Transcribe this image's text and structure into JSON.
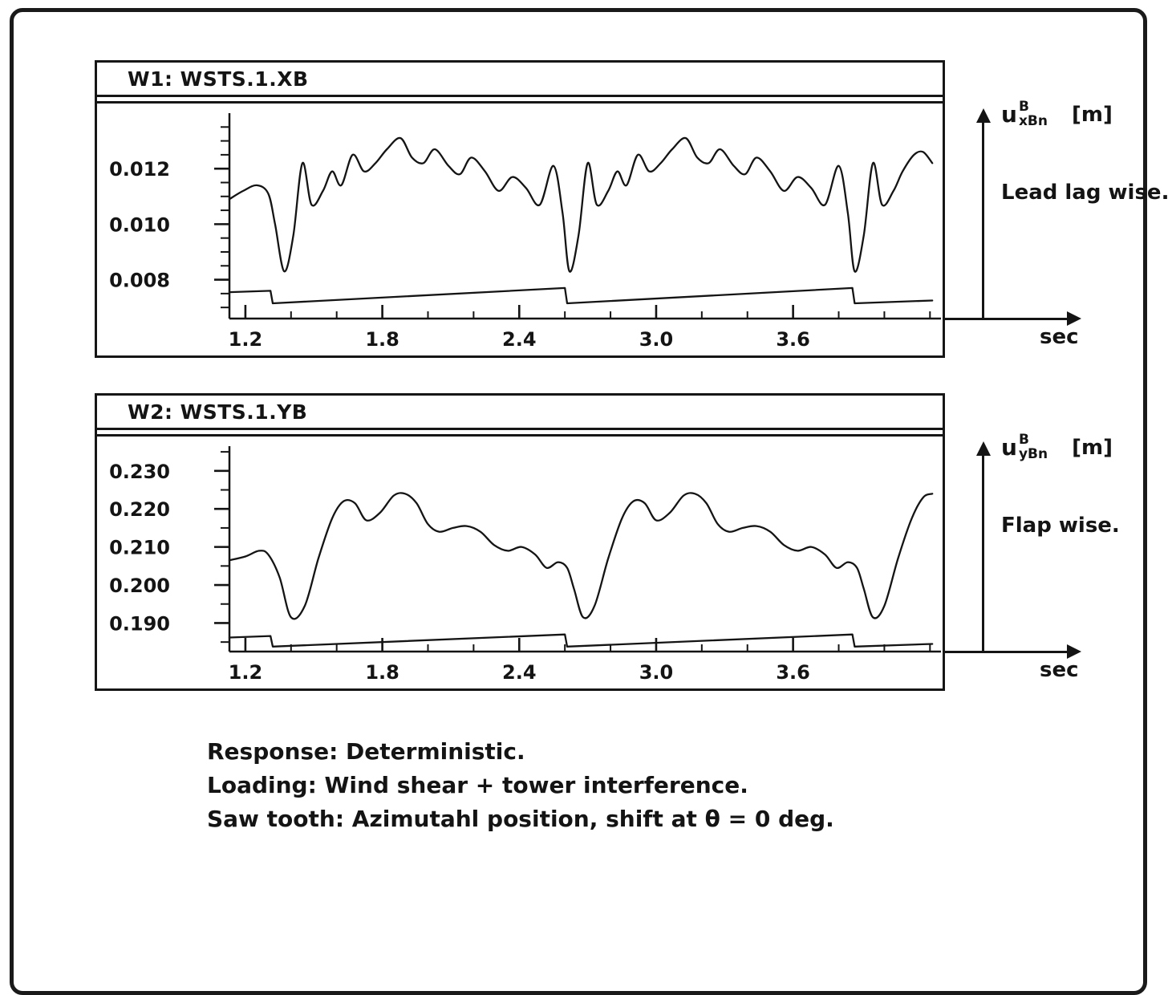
{
  "figure": {
    "background": "#ffffff",
    "line_color": "#141414",
    "border_color": "#1a1a1a"
  },
  "chart_data": [
    {
      "id": "W1",
      "type": "line",
      "title": "W1: WSTS.1.XB",
      "x_unit": "sec",
      "y_label": {
        "base": "u",
        "sup": "B",
        "sub": "xBn",
        "unit": "[m]"
      },
      "caption": "Lead lag wise.",
      "xlim": [
        1.13,
        4.22
      ],
      "ylim": [
        0.0066,
        0.014
      ],
      "x_ticks": {
        "minor_start": 1.2,
        "minor_step": 0.2,
        "minor_max": 4.2,
        "major_values": [
          1.2,
          1.8,
          2.4,
          3.0,
          3.6
        ],
        "labels": [
          "1.2",
          "1.8",
          "2.4",
          "3.0",
          "3.6"
        ]
      },
      "y_ticks": {
        "minor_start": 0.007,
        "minor_step": 0.0005,
        "minor_max": 0.0135,
        "major_values": [
          0.008,
          0.01,
          0.012
        ],
        "labels": [
          "0.008",
          "0.010",
          "0.012"
        ]
      },
      "series": [
        {
          "name": "lead-lag-response",
          "smooth": true,
          "points": [
            [
              1.13,
              0.0109
            ],
            [
              1.19,
              0.0112
            ],
            [
              1.25,
              0.0114
            ],
            [
              1.3,
              0.0111
            ],
            [
              1.33,
              0.01
            ],
            [
              1.37,
              0.0083
            ],
            [
              1.41,
              0.0096
            ],
            [
              1.45,
              0.0122
            ],
            [
              1.49,
              0.0107
            ],
            [
              1.54,
              0.0112
            ],
            [
              1.58,
              0.0119
            ],
            [
              1.62,
              0.0114
            ],
            [
              1.67,
              0.0125
            ],
            [
              1.72,
              0.0119
            ],
            [
              1.77,
              0.0122
            ],
            [
              1.82,
              0.0127
            ],
            [
              1.88,
              0.0131
            ],
            [
              1.93,
              0.0124
            ],
            [
              1.98,
              0.0122
            ],
            [
              2.03,
              0.0127
            ],
            [
              2.09,
              0.0121
            ],
            [
              2.14,
              0.0118
            ],
            [
              2.19,
              0.0124
            ],
            [
              2.25,
              0.0119
            ],
            [
              2.31,
              0.0112
            ],
            [
              2.37,
              0.0117
            ],
            [
              2.43,
              0.0113
            ],
            [
              2.49,
              0.0107
            ],
            [
              2.55,
              0.0121
            ],
            [
              2.59,
              0.0104
            ],
            [
              2.62,
              0.0083
            ],
            [
              2.66,
              0.0096
            ],
            [
              2.7,
              0.0122
            ],
            [
              2.74,
              0.0107
            ],
            [
              2.79,
              0.0112
            ],
            [
              2.83,
              0.0119
            ],
            [
              2.87,
              0.0114
            ],
            [
              2.92,
              0.0125
            ],
            [
              2.97,
              0.0119
            ],
            [
              3.02,
              0.0122
            ],
            [
              3.07,
              0.0127
            ],
            [
              3.13,
              0.0131
            ],
            [
              3.18,
              0.0124
            ],
            [
              3.23,
              0.0122
            ],
            [
              3.28,
              0.0127
            ],
            [
              3.34,
              0.0121
            ],
            [
              3.39,
              0.0118
            ],
            [
              3.44,
              0.0124
            ],
            [
              3.5,
              0.0119
            ],
            [
              3.56,
              0.0112
            ],
            [
              3.62,
              0.0117
            ],
            [
              3.68,
              0.0113
            ],
            [
              3.74,
              0.0107
            ],
            [
              3.8,
              0.0121
            ],
            [
              3.84,
              0.0104
            ],
            [
              3.87,
              0.0083
            ],
            [
              3.91,
              0.0096
            ],
            [
              3.95,
              0.0122
            ],
            [
              3.99,
              0.0107
            ],
            [
              4.04,
              0.0112
            ],
            [
              4.08,
              0.0119
            ],
            [
              4.13,
              0.0125
            ],
            [
              4.17,
              0.0126
            ],
            [
              4.21,
              0.0122
            ]
          ]
        },
        {
          "name": "azimuth-sawtooth",
          "smooth": false,
          "points": [
            [
              1.13,
              0.00755
            ],
            [
              1.31,
              0.0076
            ],
            [
              1.32,
              0.00715
            ],
            [
              2.6,
              0.0077
            ],
            [
              2.61,
              0.00715
            ],
            [
              3.86,
              0.0077
            ],
            [
              3.87,
              0.00715
            ],
            [
              4.21,
              0.00725
            ]
          ]
        }
      ]
    },
    {
      "id": "W2",
      "type": "line",
      "title": "W2: WSTS.1.YB",
      "x_unit": "sec",
      "y_label": {
        "base": "u",
        "sup": "B",
        "sub": "yBn",
        "unit": "[m]"
      },
      "caption": "Flap wise.",
      "xlim": [
        1.13,
        4.22
      ],
      "ylim": [
        0.1825,
        0.2365
      ],
      "x_ticks": {
        "minor_start": 1.2,
        "minor_step": 0.2,
        "minor_max": 4.2,
        "major_values": [
          1.2,
          1.8,
          2.4,
          3.0,
          3.6
        ],
        "labels": [
          "1.2",
          "1.8",
          "2.4",
          "3.0",
          "3.6"
        ]
      },
      "y_ticks": {
        "minor_start": 0.185,
        "minor_step": 0.005,
        "minor_max": 0.235,
        "major_values": [
          0.19,
          0.2,
          0.21,
          0.22,
          0.23
        ],
        "labels": [
          "0.190",
          "0.200",
          "0.210",
          "0.220",
          "0.230"
        ]
      },
      "series": [
        {
          "name": "flap-response",
          "smooth": true,
          "points": [
            [
              1.13,
              0.2065
            ],
            [
              1.2,
              0.2075
            ],
            [
              1.26,
              0.209
            ],
            [
              1.3,
              0.208
            ],
            [
              1.35,
              0.202
            ],
            [
              1.4,
              0.1915
            ],
            [
              1.46,
              0.1945
            ],
            [
              1.52,
              0.207
            ],
            [
              1.58,
              0.2175
            ],
            [
              1.63,
              0.222
            ],
            [
              1.68,
              0.2215
            ],
            [
              1.73,
              0.217
            ],
            [
              1.79,
              0.219
            ],
            [
              1.85,
              0.2235
            ],
            [
              1.9,
              0.224
            ],
            [
              1.95,
              0.2215
            ],
            [
              2.0,
              0.216
            ],
            [
              2.05,
              0.214
            ],
            [
              2.11,
              0.215
            ],
            [
              2.17,
              0.2155
            ],
            [
              2.23,
              0.214
            ],
            [
              2.29,
              0.2105
            ],
            [
              2.35,
              0.209
            ],
            [
              2.41,
              0.21
            ],
            [
              2.47,
              0.208
            ],
            [
              2.52,
              0.2045
            ],
            [
              2.57,
              0.206
            ],
            [
              2.61,
              0.2045
            ],
            [
              2.64,
              0.199
            ],
            [
              2.68,
              0.1915
            ],
            [
              2.73,
              0.1945
            ],
            [
              2.79,
              0.207
            ],
            [
              2.85,
              0.2175
            ],
            [
              2.9,
              0.222
            ],
            [
              2.95,
              0.2215
            ],
            [
              3.0,
              0.217
            ],
            [
              3.06,
              0.219
            ],
            [
              3.12,
              0.2235
            ],
            [
              3.17,
              0.224
            ],
            [
              3.22,
              0.2215
            ],
            [
              3.27,
              0.216
            ],
            [
              3.32,
              0.214
            ],
            [
              3.38,
              0.215
            ],
            [
              3.44,
              0.2155
            ],
            [
              3.5,
              0.214
            ],
            [
              3.56,
              0.2105
            ],
            [
              3.62,
              0.209
            ],
            [
              3.68,
              0.21
            ],
            [
              3.74,
              0.208
            ],
            [
              3.79,
              0.2045
            ],
            [
              3.84,
              0.206
            ],
            [
              3.88,
              0.2045
            ],
            [
              3.91,
              0.199
            ],
            [
              3.95,
              0.1915
            ],
            [
              4.0,
              0.1945
            ],
            [
              4.06,
              0.207
            ],
            [
              4.12,
              0.2175
            ],
            [
              4.17,
              0.223
            ],
            [
              4.21,
              0.224
            ]
          ]
        },
        {
          "name": "azimuth-sawtooth",
          "smooth": false,
          "points": [
            [
              1.13,
              0.1862
            ],
            [
              1.31,
              0.1866
            ],
            [
              1.32,
              0.1838
            ],
            [
              2.6,
              0.187
            ],
            [
              2.61,
              0.1838
            ],
            [
              3.86,
              0.187
            ],
            [
              3.87,
              0.1838
            ],
            [
              4.21,
              0.1845
            ]
          ]
        }
      ]
    }
  ],
  "footer": {
    "lines": [
      "Response: Deterministic.",
      "Loading: Wind shear + tower interference.",
      "Saw tooth: Azimutahl position, shift at θ = 0 deg."
    ]
  }
}
